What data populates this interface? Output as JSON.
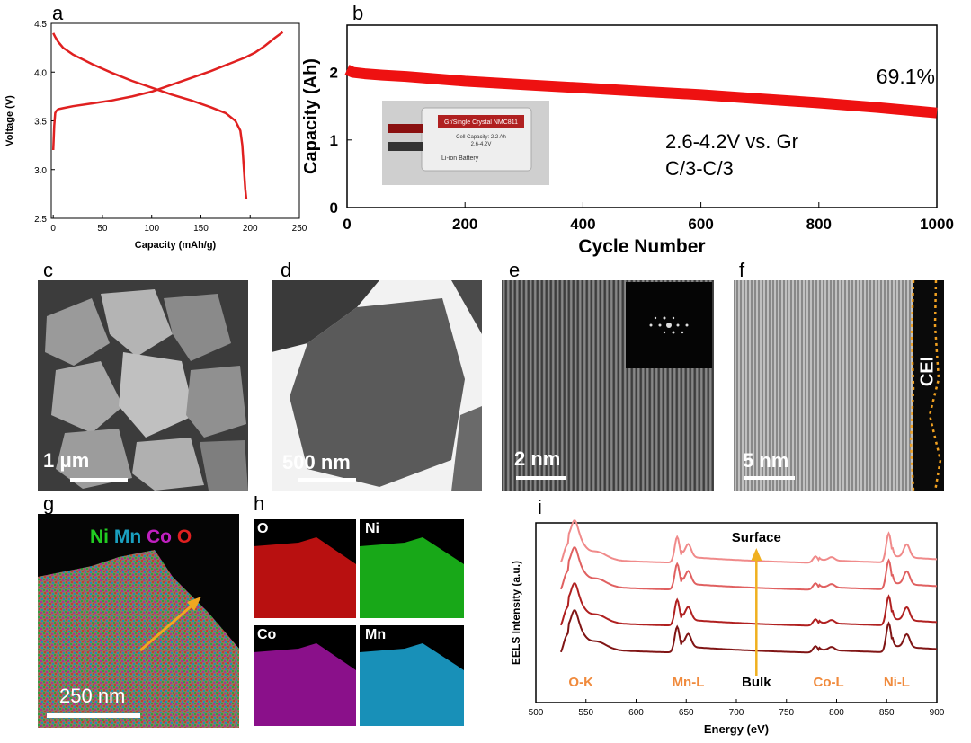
{
  "panel_labels": {
    "a": "a",
    "b": "b",
    "c": "c",
    "d": "d",
    "e": "e",
    "f": "f",
    "g": "g",
    "h": "h",
    "i": "i"
  },
  "chart_data": [
    {
      "panel": "a",
      "type": "line",
      "xlabel": "Capacity (mAh/g)",
      "ylabel": "Voltage (V)",
      "xlim": [
        -2,
        250
      ],
      "ylim": [
        2.5,
        4.5
      ],
      "xticks": [
        0,
        50,
        100,
        150,
        200,
        250
      ],
      "yticks": [
        2.5,
        3.0,
        3.5,
        4.0,
        4.5
      ],
      "color": "#e02020",
      "series": [
        {
          "x": [
            0,
            1,
            2,
            3,
            5,
            10,
            20,
            40,
            60,
            80,
            100,
            120,
            140,
            160,
            180,
            195,
            205,
            215,
            225,
            233
          ],
          "y": [
            3.2,
            3.45,
            3.58,
            3.6,
            3.62,
            3.63,
            3.65,
            3.68,
            3.71,
            3.75,
            3.8,
            3.87,
            3.94,
            4.01,
            4.09,
            4.15,
            4.2,
            4.27,
            4.35,
            4.41
          ]
        },
        {
          "x": [
            0,
            2,
            5,
            10,
            20,
            40,
            60,
            80,
            100,
            120,
            140,
            160,
            175,
            185,
            190,
            192,
            193,
            194,
            195,
            196
          ],
          "y": [
            4.4,
            4.36,
            4.31,
            4.25,
            4.18,
            4.08,
            3.99,
            3.91,
            3.84,
            3.77,
            3.71,
            3.64,
            3.58,
            3.5,
            3.4,
            3.25,
            3.1,
            2.95,
            2.8,
            2.7
          ]
        }
      ]
    },
    {
      "panel": "b",
      "type": "line",
      "xlabel": "Cycle Number",
      "ylabel": "Capacity (Ah)",
      "xlim": [
        0,
        1000
      ],
      "ylim": [
        0,
        2.7
      ],
      "xticks": [
        0,
        200,
        400,
        600,
        800,
        1000
      ],
      "yticks": [
        0,
        1,
        2
      ],
      "color": "#ee1111",
      "series": [
        {
          "x": [
            0,
            10,
            30,
            60,
            100,
            200,
            300,
            400,
            500,
            600,
            700,
            800,
            900,
            950,
            1000
          ],
          "y": [
            2.04,
            2.0,
            1.98,
            1.96,
            1.94,
            1.87,
            1.82,
            1.77,
            1.72,
            1.67,
            1.61,
            1.55,
            1.48,
            1.44,
            1.4
          ]
        }
      ],
      "annotations": [
        "69.1%",
        "2.6-4.2V vs. Gr",
        "C/3-C/3"
      ],
      "inset": {
        "label_top": "Gr/Single Crystal NMC811",
        "lines": [
          "Cell Capacity: 2.2 Ah",
          "2.6-4.2V"
        ],
        "brand": "Li-ion Battery"
      }
    },
    {
      "panel": "i",
      "type": "line",
      "xlabel": "Energy (eV)",
      "ylabel": "EELS Intensity (a.u.)",
      "xlim": [
        500,
        900
      ],
      "xticks": [
        500,
        550,
        600,
        650,
        700,
        750,
        800,
        850,
        900
      ],
      "series": [
        {
          "name": "",
          "color": "#f08a8a",
          "offset": 3
        },
        {
          "name": "",
          "color": "#e06060",
          "offset": 2
        },
        {
          "name": "",
          "color": "#b02020",
          "offset": 1
        },
        {
          "name": "",
          "color": "#801515",
          "offset": 0
        }
      ],
      "edge_labels": [
        "O-K",
        "Mn-L",
        "Co-L",
        "Ni-L"
      ],
      "arrow_top_label": "Surface",
      "arrow_bottom_label": "Bulk",
      "label_color": "#f08a3c"
    }
  ],
  "images": {
    "c": {
      "scalebar": "1 μm"
    },
    "d": {
      "scalebar": "500 nm"
    },
    "e": {
      "scalebar": "2 nm"
    },
    "f": {
      "scalebar": "5 nm",
      "tag": "CEI"
    },
    "g": {
      "scalebar": "250 nm",
      "elements": [
        {
          "text": "Ni",
          "color": "#22cc22"
        },
        {
          "text": "Mn",
          "color": "#1aa0c0"
        },
        {
          "text": "Co",
          "color": "#c020c0"
        },
        {
          "text": "O",
          "color": "#e02020"
        }
      ]
    },
    "h": {
      "maps": [
        {
          "text": "O",
          "color": "#d01515"
        },
        {
          "text": "Ni",
          "color": "#20c020"
        },
        {
          "text": "Co",
          "color": "#b018b0"
        },
        {
          "text": "Mn",
          "color": "#18a8d0"
        }
      ]
    }
  }
}
